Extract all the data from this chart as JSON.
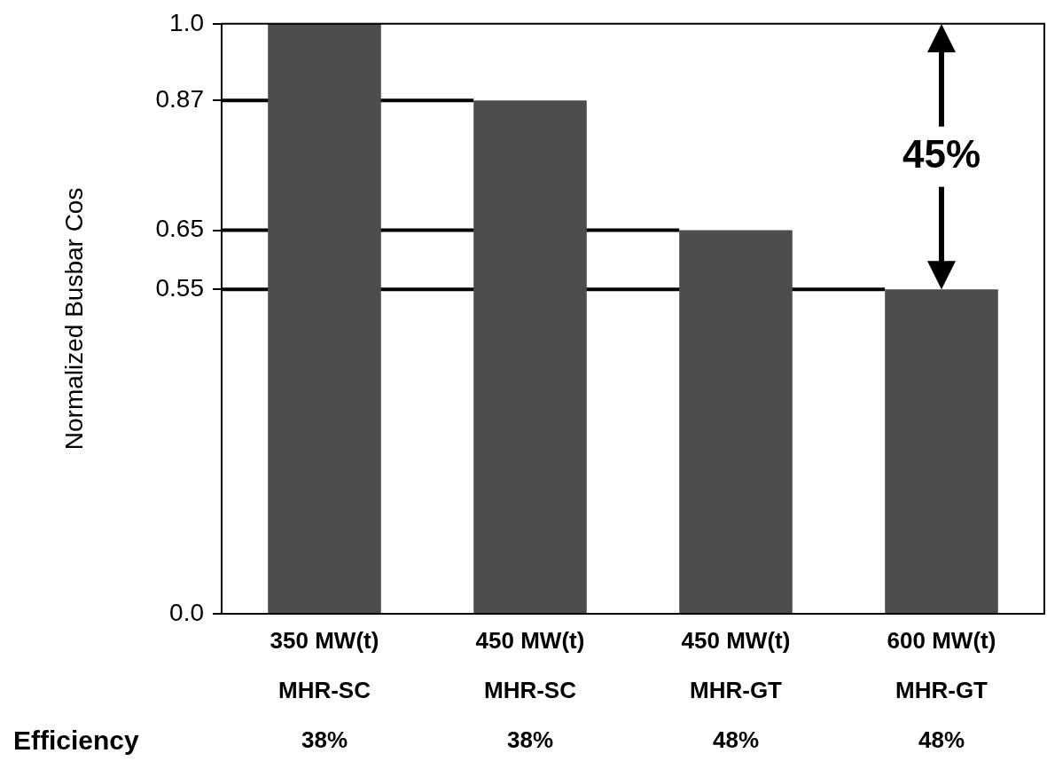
{
  "chart_data": {
    "type": "bar",
    "ylabel": "Normalized Busbar Cos",
    "categories": [
      "350 MW(t)\nMHR-SC\n38%",
      "450 MW(t)\nMHR-SC\n38%",
      "450 MW(t)\nMHR-GT\n48%",
      "600 MW(t)\nMHR-GT\n48%"
    ],
    "values": [
      1.0,
      0.87,
      0.65,
      0.55
    ],
    "color": "#4d4d4d",
    "ylim": [
      0,
      1.0
    ],
    "yticks": [
      {
        "value": 0,
        "label": "0.0"
      },
      0.55,
      0.65,
      0.87,
      {
        "value": 1,
        "label": "1.0"
      }
    ],
    "ref_lines": [
      {
        "axis": "y",
        "value": 0.87
      },
      {
        "axis": "y",
        "value": 0.65
      },
      {
        "axis": "y",
        "value": 0.55
      }
    ],
    "annotations": [
      "Efficiency",
      {
        "text": "45%",
        "x": "600 MW(t)\nMHR-GT\n48%",
        "y": 0.55
      }
    ]
  }
}
